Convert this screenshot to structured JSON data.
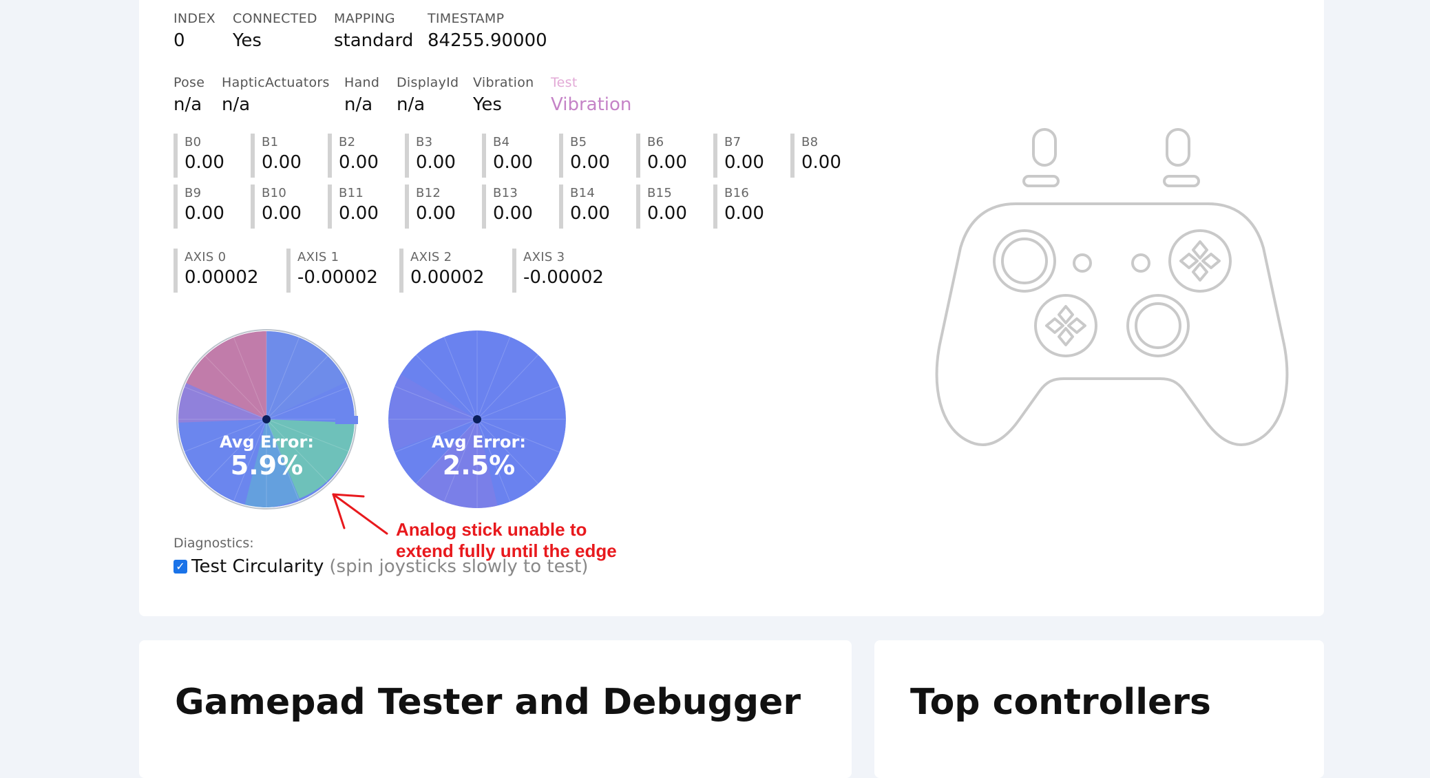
{
  "info": [
    {
      "label": "INDEX",
      "value": "0"
    },
    {
      "label": "CONNECTED",
      "value": "Yes"
    },
    {
      "label": "MAPPING",
      "value": "standard"
    },
    {
      "label": "TIMESTAMP",
      "value": "84255.90000"
    }
  ],
  "props": [
    {
      "label": "Pose",
      "value": "n/a"
    },
    {
      "label": "HapticActuators",
      "value": "n/a"
    },
    {
      "label": "Hand",
      "value": "n/a"
    },
    {
      "label": "DisplayId",
      "value": "n/a"
    },
    {
      "label": "Vibration",
      "value": "Yes"
    },
    {
      "label": "Test",
      "value": "Vibration"
    }
  ],
  "buttons": [
    {
      "label": "B0",
      "value": "0.00"
    },
    {
      "label": "B1",
      "value": "0.00"
    },
    {
      "label": "B2",
      "value": "0.00"
    },
    {
      "label": "B3",
      "value": "0.00"
    },
    {
      "label": "B4",
      "value": "0.00"
    },
    {
      "label": "B5",
      "value": "0.00"
    },
    {
      "label": "B6",
      "value": "0.00"
    },
    {
      "label": "B7",
      "value": "0.00"
    },
    {
      "label": "B8",
      "value": "0.00"
    },
    {
      "label": "B9",
      "value": "0.00"
    },
    {
      "label": "B10",
      "value": "0.00"
    },
    {
      "label": "B11",
      "value": "0.00"
    },
    {
      "label": "B12",
      "value": "0.00"
    },
    {
      "label": "B13",
      "value": "0.00"
    },
    {
      "label": "B14",
      "value": "0.00"
    },
    {
      "label": "B15",
      "value": "0.00"
    },
    {
      "label": "B16",
      "value": "0.00"
    }
  ],
  "axes": [
    {
      "label": "AXIS 0",
      "value": "0.00002"
    },
    {
      "label": "AXIS 1",
      "value": "-0.00002"
    },
    {
      "label": "AXIS 2",
      "value": "0.00002"
    },
    {
      "label": "AXIS 3",
      "value": "-0.00002"
    }
  ],
  "sticks": [
    {
      "avg_label": "Avg Error:",
      "avg_value": "5.9%"
    },
    {
      "avg_label": "Avg Error:",
      "avg_value": "2.5%"
    }
  ],
  "annotation": {
    "line1": "Analog stick unable to",
    "line2": "extend fully until the edge"
  },
  "diagnostics": {
    "label": "Diagnostics:",
    "checked": true,
    "option": "Test Circularity",
    "hint": "(spin joysticks slowly to test)"
  },
  "cards": {
    "tester_title": "Gamepad Tester and Debugger",
    "top_title": "Top controllers"
  },
  "colors": {
    "accent": "#1a73e8",
    "annotation": "#e8191d",
    "stick_blue": "#6b7ff0",
    "test_pink": "#c583c7"
  },
  "icons": {
    "controller": "gamepad-outline-icon",
    "arrow": "arrow-icon",
    "check": "checkmark-icon"
  }
}
